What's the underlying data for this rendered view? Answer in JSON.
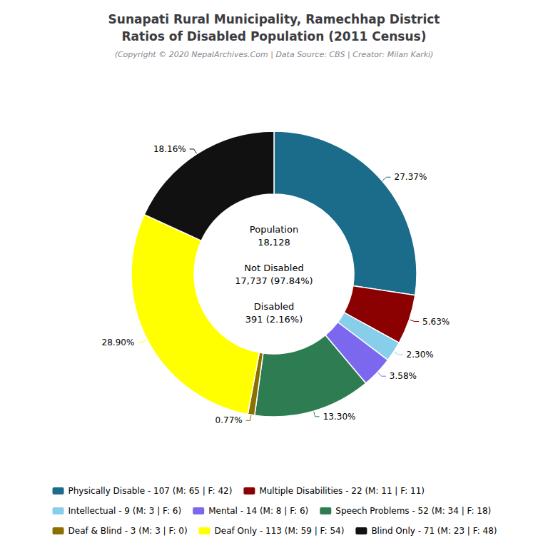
{
  "chart_data": {
    "type": "pie",
    "title": "Sunapati Rural Municipality, Ramechhap District\nRatios of Disabled Population (2011 Census)",
    "subtitle": "(Copyright © 2020 NepalArchives.Com | Data Source: CBS | Creator: Milan Karki)",
    "categories": [
      "Physically Disable - 107 (M: 65 | F: 42)",
      "Multiple Disabilities - 22 (M: 11 | F: 11)",
      "Intellectual - 9 (M: 3 | F: 6)",
      "Mental - 14 (M: 8 | F: 6)",
      "Speech Problems - 52 (M: 34 | F: 18)",
      "Deaf & Blind - 3 (M: 3 | F: 0)",
      "Deaf Only - 113 (M: 59 | F: 54)",
      "Blind Only - 71 (M: 23 | F: 48)"
    ],
    "values": [
      27.37,
      5.63,
      2.3,
      3.58,
      13.3,
      0.77,
      28.9,
      18.16
    ],
    "value_labels": [
      "27.37%",
      "5.63%",
      "2.30%",
      "3.58%",
      "13.30%",
      "0.77%",
      "28.90%",
      "18.16%"
    ],
    "colors": [
      "#1B6B8A",
      "#8B0000",
      "#87CEEB",
      "#7B68EE",
      "#2E7D52",
      "#8B7000",
      "#FFFF00",
      "#111111"
    ],
    "data_labels": true,
    "legend": "bottom",
    "annotations": [
      "Population\n18,128",
      "Not Disabled\n17,737 (97.84%)",
      "Disabled\n391 (2.16%)"
    ]
  }
}
